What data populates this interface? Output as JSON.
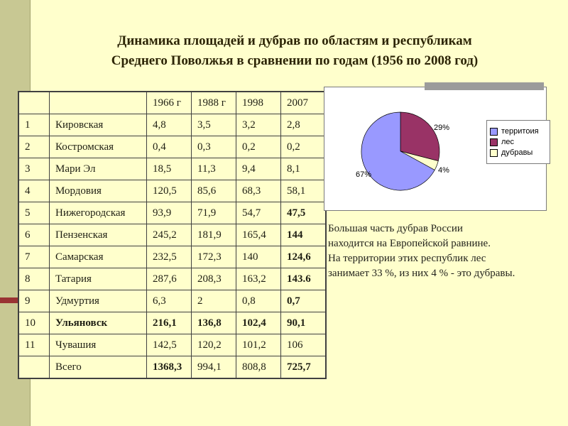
{
  "slide": {
    "title_lines": [
      "Динамика  площадей и дубрав по областям и республикам",
      "Среднего Поволжья в сравнении по годам  (1956  по 2008 год)"
    ]
  },
  "table": {
    "headers": [
      "",
      "",
      "1966 г",
      "1988 г",
      "1998",
      "2007"
    ],
    "rows": [
      {
        "cells": [
          "1",
          "Кировская",
          "4,8",
          "3,5",
          "3,2",
          "2,8"
        ],
        "bold": []
      },
      {
        "cells": [
          "2",
          "Костромская",
          "0,4",
          "0,3",
          "0,2",
          "0,2"
        ],
        "bold": []
      },
      {
        "cells": [
          "3",
          "Мари Эл",
          "18,5",
          "11,3",
          "9,4",
          "8,1"
        ],
        "bold": []
      },
      {
        "cells": [
          "4",
          "Мордовия",
          "120,5",
          "85,6",
          "68,3",
          "58,1"
        ],
        "bold": []
      },
      {
        "cells": [
          "5",
          "Нижегородская",
          "93,9",
          "71,9",
          "54,7",
          "47,5"
        ],
        "bold": [
          5
        ]
      },
      {
        "cells": [
          "6",
          "Пензенская",
          "245,2",
          "181,9",
          "165,4",
          "144"
        ],
        "bold": [
          5
        ]
      },
      {
        "cells": [
          "7",
          "Самарская",
          "232,5",
          "172,3",
          "140",
          "124,6"
        ],
        "bold": [
          5
        ]
      },
      {
        "cells": [
          "8",
          "Татария",
          "287,6",
          "208,3",
          "163,2",
          "143.6"
        ],
        "bold": [
          5
        ]
      },
      {
        "cells": [
          "9",
          "Удмуртия",
          "6,3",
          "2",
          "0,8",
          "0,7"
        ],
        "bold": [
          5
        ]
      },
      {
        "cells": [
          "10",
          "Ульяновск",
          "216,1",
          "136,8",
          "102,4",
          "90,1"
        ],
        "bold": [
          1,
          2,
          3,
          4,
          5
        ]
      },
      {
        "cells": [
          "11",
          "Чувашия",
          "142,5",
          "120,2",
          "101,2",
          "106"
        ],
        "bold": []
      },
      {
        "cells": [
          "",
          "Всего",
          "1368,3",
          "994,1",
          "808,8",
          "725,7"
        ],
        "bold": [
          2,
          5
        ]
      }
    ]
  },
  "chart_data": {
    "type": "pie",
    "labels": [
      "территоия",
      "лес",
      "дубравы"
    ],
    "values": [
      67,
      29,
      4
    ],
    "slice_labels": [
      "67%",
      "29%",
      "4%"
    ],
    "colors": [
      "#9999FF",
      "#993366",
      "#FFFFCC"
    ],
    "draw_order": [
      1,
      2,
      0
    ],
    "legend_position": "right",
    "title": ""
  },
  "note": {
    "lines": [
      "Большая часть  дубрав России",
      "находится  на Европейской равнине.",
      "На территории этих республик  лес",
      "занимает 33 %, из них 4 % - это дубравы."
    ]
  }
}
